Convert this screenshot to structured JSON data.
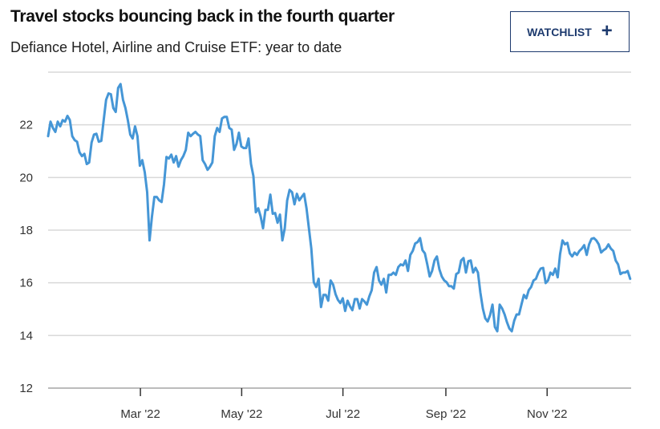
{
  "header": {
    "title": "Travel stocks bouncing back in the fourth quarter",
    "subtitle": "Defiance Hotel, Airline and Cruise ETF: year to date",
    "watchlist_label": "WATCHLIST",
    "watchlist_icon": "plus-icon"
  },
  "colors": {
    "line": "#4596d6",
    "grid": "#d9d9d9",
    "axis": "#bbbbbb",
    "button": "#1d3a6e"
  },
  "chart_data": {
    "type": "line",
    "title": "Travel stocks bouncing back in the fourth quarter",
    "subtitle": "Defiance Hotel, Airline and Cruise ETF: year to date",
    "xlabel": "",
    "ylabel": "",
    "x_unit": "day of year 2022",
    "xlim": [
      3.4,
      354.6
    ],
    "ylim": [
      12,
      24
    ],
    "grid": true,
    "yticks": [
      12,
      14,
      16,
      18,
      20,
      22
    ],
    "ytick_labels": [
      "12",
      "14",
      "16",
      "18",
      "20",
      "22"
    ],
    "xticks": [
      59,
      120,
      181,
      243,
      304
    ],
    "xtick_labels": [
      "Mar '22",
      "May '22",
      "Jul '22",
      "Sep '22",
      "Nov '22"
    ],
    "series": [
      {
        "name": "Defiance Hotel, Airline and Cruise ETF",
        "x_start": 3.4,
        "x_end": 354.0,
        "values": [
          21.57,
          22.12,
          21.88,
          21.73,
          22.12,
          21.94,
          22.18,
          22.12,
          22.34,
          22.18,
          21.57,
          21.42,
          21.36,
          20.96,
          20.81,
          20.9,
          20.51,
          20.57,
          21.33,
          21.63,
          21.66,
          21.36,
          21.39,
          22.18,
          22.95,
          23.19,
          23.16,
          22.64,
          22.49,
          23.4,
          23.55,
          22.95,
          22.64,
          22.18,
          21.63,
          21.48,
          21.94,
          21.57,
          20.45,
          20.66,
          20.2,
          19.44,
          17.61,
          18.52,
          19.26,
          19.26,
          19.13,
          19.07,
          19.74,
          20.78,
          20.72,
          20.87,
          20.57,
          20.81,
          20.41,
          20.66,
          20.81,
          21.05,
          21.7,
          21.57,
          21.66,
          21.73,
          21.63,
          21.57,
          20.66,
          20.51,
          20.29,
          20.41,
          20.57,
          21.57,
          21.88,
          21.73,
          22.24,
          22.3,
          22.3,
          21.88,
          21.82,
          21.05,
          21.27,
          21.7,
          21.18,
          21.12,
          21.12,
          21.48,
          20.51,
          20.05,
          18.68,
          18.83,
          18.52,
          18.07,
          18.77,
          18.77,
          19.35,
          18.62,
          18.65,
          18.28,
          18.59,
          17.61,
          18.07,
          19.13,
          19.53,
          19.44,
          18.98,
          19.38,
          19.13,
          19.26,
          19.38,
          18.83,
          18.07,
          17.3,
          16.02,
          15.84,
          16.15,
          15.08,
          15.54,
          15.54,
          15.32,
          16.09,
          15.93,
          15.57,
          15.35,
          15.23,
          15.41,
          14.93,
          15.32,
          15.11,
          14.96,
          15.38,
          15.38,
          15.02,
          15.38,
          15.29,
          15.17,
          15.48,
          15.72,
          16.39,
          16.6,
          16.09,
          15.93,
          16.15,
          15.63,
          16.3,
          16.3,
          16.39,
          16.3,
          16.6,
          16.7,
          16.66,
          16.85,
          16.45,
          17.06,
          17.21,
          17.49,
          17.55,
          17.7,
          17.24,
          17.12,
          16.7,
          16.24,
          16.45,
          16.85,
          17.0,
          16.51,
          16.24,
          16.09,
          16.02,
          15.87,
          15.87,
          15.78,
          16.33,
          16.39,
          16.85,
          16.94,
          16.39,
          16.82,
          16.85,
          16.39,
          16.57,
          16.39,
          15.63,
          15.02,
          14.65,
          14.53,
          14.77,
          15.17,
          14.32,
          14.16,
          15.17,
          15.02,
          14.8,
          14.5,
          14.26,
          14.16,
          14.56,
          14.8,
          14.8,
          15.17,
          15.54,
          15.41,
          15.72,
          15.84,
          16.09,
          16.15,
          16.39,
          16.54,
          16.57,
          15.99,
          16.09,
          16.39,
          16.3,
          16.54,
          16.21,
          17.09,
          17.61,
          17.46,
          17.52,
          17.12,
          17.0,
          17.15,
          17.06,
          17.21,
          17.3,
          17.43,
          17.06,
          17.46,
          17.67,
          17.7,
          17.61,
          17.46,
          17.15,
          17.24,
          17.3,
          17.46,
          17.3,
          17.21,
          16.85,
          16.7,
          16.33,
          16.39,
          16.39,
          16.45,
          16.15
        ]
      }
    ]
  }
}
